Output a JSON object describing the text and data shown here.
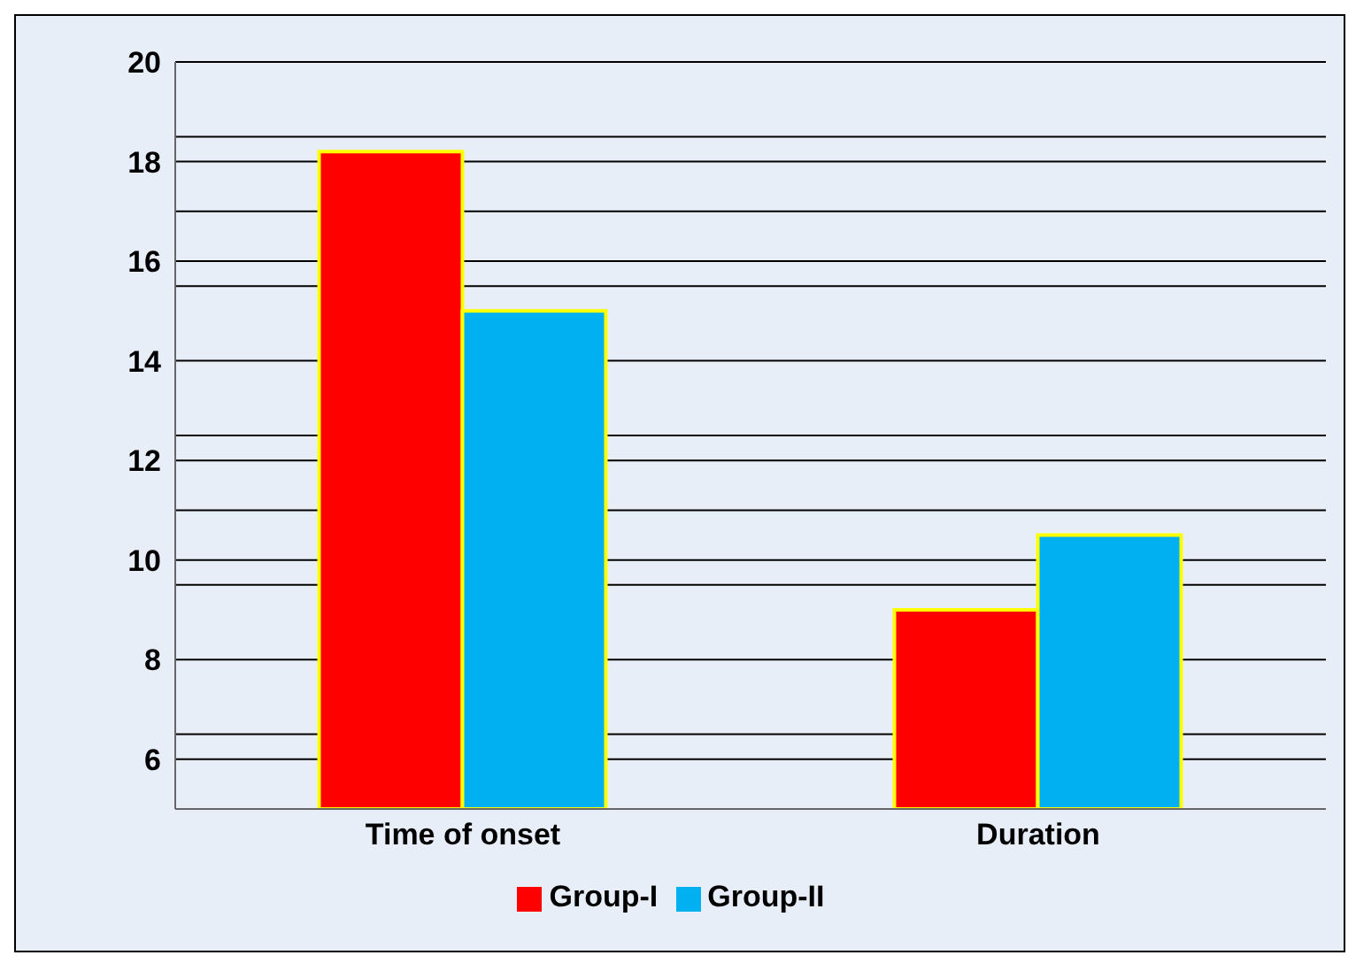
{
  "chart_data": {
    "type": "bar",
    "categories": [
      "Time of onset",
      "Duration"
    ],
    "series": [
      {
        "name": "Group-I",
        "color": "#ff0000",
        "values": [
          18.2,
          9
        ]
      },
      {
        "name": "Group-II",
        "color": "#00b0f0",
        "values": [
          15,
          10.5
        ]
      }
    ],
    "ylim": [
      5,
      20
    ],
    "yticks": [
      6,
      {
        "value": 6.5,
        "label": null
      },
      8,
      {
        "value": 9.5,
        "label": null
      },
      10,
      {
        "value": 11,
        "label": null
      },
      12,
      {
        "value": 12.5,
        "label": null
      },
      14,
      {
        "value": 15.5,
        "label": null
      },
      16,
      {
        "value": 17,
        "label": null
      },
      18,
      {
        "value": 18.5,
        "label": null
      },
      20
    ],
    "grid": "y",
    "legend": "bottom"
  }
}
